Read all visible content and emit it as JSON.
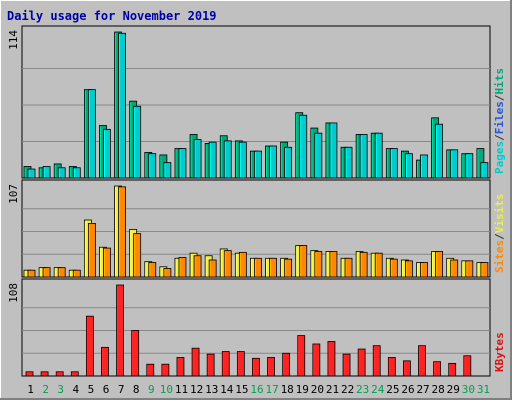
{
  "chart_data": {
    "type": "bar",
    "title": "Daily usage for November 2019",
    "categories": [
      "1",
      "2",
      "3",
      "4",
      "5",
      "6",
      "7",
      "8",
      "9",
      "10",
      "11",
      "12",
      "13",
      "14",
      "15",
      "16",
      "17",
      "18",
      "19",
      "20",
      "21",
      "22",
      "23",
      "24",
      "25",
      "26",
      "27",
      "28",
      "29",
      "30",
      "31"
    ],
    "weekend_days": [
      "2",
      "3",
      "9",
      "10",
      "16",
      "17",
      "23",
      "24",
      "30",
      "31"
    ],
    "panels": [
      {
        "id": "hits-files-pages",
        "max_label": "114",
        "ymax": 114,
        "legend": [
          {
            "text": "Pages",
            "color": "#00cccc"
          },
          {
            "text": "/",
            "color": "#333333"
          },
          {
            "text": "Files",
            "color": "#2255dd"
          },
          {
            "text": "/",
            "color": "#333333"
          },
          {
            "text": "Hits",
            "color": "#00a878"
          }
        ],
        "series": [
          {
            "name": "Hits",
            "color": "#00a878",
            "values": [
              9,
              8,
              11,
              9,
              69,
              41,
              114,
              60,
              20,
              18,
              23,
              34,
              27,
              33,
              29,
              21,
              25,
              28,
              51,
              39,
              43,
              24,
              34,
              35,
              23,
              21,
              14,
              47,
              22,
              19,
              23
            ]
          },
          {
            "name": "Pages",
            "color": "#00cccc",
            "values": [
              7,
              9,
              8,
              8,
              69,
              38,
              113,
              56,
              19,
              12,
              23,
              30,
              28,
              29,
              28,
              21,
              25,
              24,
              49,
              35,
              43,
              24,
              34,
              35,
              23,
              19,
              18,
              42,
              22,
              19,
              12
            ]
          }
        ]
      },
      {
        "id": "visits-sites",
        "max_label": "107",
        "ymax": 107,
        "legend": [
          {
            "text": "Sites",
            "color": "#ff8800"
          },
          {
            "text": "/",
            "color": "#333333"
          },
          {
            "text": "Visits",
            "color": "#eeee44"
          }
        ],
        "series": [
          {
            "name": "Visits",
            "color": "#eeee44",
            "values": [
              8,
              11,
              11,
              8,
              67,
              35,
              107,
              56,
              18,
              12,
              22,
              28,
              25,
              33,
              28,
              22,
              22,
              22,
              37,
              31,
              30,
              22,
              30,
              28,
              22,
              20,
              17,
              30,
              22,
              19,
              17
            ]
          },
          {
            "name": "Sites",
            "color": "#ff8800",
            "values": [
              8,
              11,
              11,
              8,
              63,
              34,
              106,
              51,
              17,
              10,
              23,
              25,
              20,
              31,
              29,
              22,
              22,
              21,
              37,
              30,
              30,
              22,
              29,
              28,
              21,
              19,
              17,
              30,
              20,
              19,
              17
            ]
          }
        ]
      },
      {
        "id": "kbytes",
        "max_label": "108",
        "ymax": 108,
        "legend": [
          {
            "text": "KBytes",
            "color": "#dd1111"
          }
        ],
        "series": [
          {
            "name": "KBytes",
            "color": "#ff2222",
            "values": [
              5,
              5,
              5,
              5,
              71,
              34,
              108,
              54,
              14,
              14,
              22,
              33,
              26,
              29,
              29,
              21,
              22,
              27,
              48,
              38,
              41,
              26,
              32,
              36,
              22,
              18,
              36,
              17,
              15,
              24,
              0
            ]
          }
        ]
      }
    ]
  },
  "colors": {
    "background": "#c0c0c0",
    "border_dark": "#808080",
    "border_light": "#ffffff",
    "plot_bg": "#c0c0c0",
    "plot_border": "#000000",
    "gridline": "#888888",
    "title": "#0000aa",
    "weekday_label": "#000000",
    "weekend_label": "#00a050"
  }
}
